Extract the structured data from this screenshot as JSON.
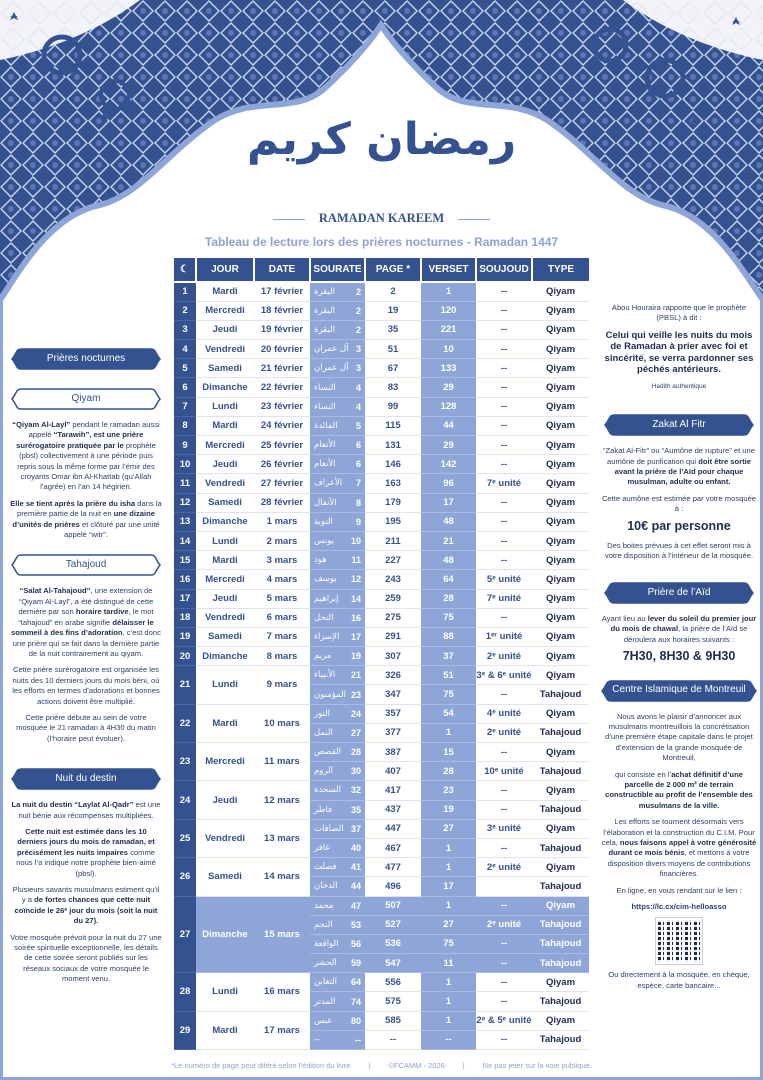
{
  "header": {
    "logo_text": "رمضان كريم",
    "title": "RAMADAN KAREEM",
    "subtitle": "Tableau de lecture lors des prières nocturnes - Ramadan 1447"
  },
  "colors": {
    "primary": "#34528f",
    "accent": "#8ea5d8",
    "light": "#8aa3d8"
  },
  "table": {
    "icon": "crescent-moon-icon",
    "columns": [
      "JOUR",
      "DATE",
      "SOURATE",
      "PAGE *",
      "VERSET",
      "SOUJOUD",
      "TYPE"
    ],
    "days": [
      {
        "n": "1",
        "jour": "Mardi",
        "date": "17 février",
        "r": [
          [
            "2",
            "البقرة",
            "2",
            "1",
            "--",
            "Qiyam"
          ]
        ]
      },
      {
        "n": "2",
        "jour": "Mercredi",
        "date": "18 février",
        "r": [
          [
            "2",
            "البقرة",
            "19",
            "120",
            "--",
            "Qiyam"
          ]
        ]
      },
      {
        "n": "3",
        "jour": "Jeudi",
        "date": "19 février",
        "r": [
          [
            "2",
            "البقرة",
            "35",
            "221",
            "--",
            "Qiyam"
          ]
        ]
      },
      {
        "n": "4",
        "jour": "Vendredi",
        "date": "20 février",
        "r": [
          [
            "3",
            "آل عمران",
            "51",
            "10",
            "--",
            "Qiyam"
          ]
        ]
      },
      {
        "n": "5",
        "jour": "Samedi",
        "date": "21 février",
        "r": [
          [
            "3",
            "آل عمران",
            "67",
            "133",
            "--",
            "Qiyam"
          ]
        ]
      },
      {
        "n": "6",
        "jour": "Dimanche",
        "date": "22 février",
        "r": [
          [
            "4",
            "النساء",
            "83",
            "29",
            "--",
            "Qiyam"
          ]
        ]
      },
      {
        "n": "7",
        "jour": "Lundi",
        "date": "23 février",
        "r": [
          [
            "4",
            "النساء",
            "99",
            "128",
            "--",
            "Qiyam"
          ]
        ]
      },
      {
        "n": "8",
        "jour": "Mardi",
        "date": "24 février",
        "r": [
          [
            "5",
            "المائدة",
            "115",
            "44",
            "--",
            "Qiyam"
          ]
        ]
      },
      {
        "n": "9",
        "jour": "Mercredi",
        "date": "25 février",
        "r": [
          [
            "6",
            "الأنعام",
            "131",
            "29",
            "--",
            "Qiyam"
          ]
        ]
      },
      {
        "n": "10",
        "jour": "Jeudi",
        "date": "26 février",
        "r": [
          [
            "6",
            "الأنعام",
            "146",
            "142",
            "--",
            "Qiyam"
          ]
        ]
      },
      {
        "n": "11",
        "jour": "Vendredi",
        "date": "27 février",
        "r": [
          [
            "7",
            "الأعراف",
            "163",
            "96",
            "7ᵉ unité",
            "Qiyam"
          ]
        ]
      },
      {
        "n": "12",
        "jour": "Samedi",
        "date": "28 février",
        "r": [
          [
            "8",
            "الأنفال",
            "179",
            "17",
            "--",
            "Qiyam"
          ]
        ]
      },
      {
        "n": "13",
        "jour": "Dimanche",
        "date": "1 mars",
        "r": [
          [
            "9",
            "التوبة",
            "195",
            "48",
            "--",
            "Qiyam"
          ]
        ]
      },
      {
        "n": "14",
        "jour": "Lundi",
        "date": "2 mars",
        "r": [
          [
            "10",
            "يونس",
            "211",
            "21",
            "--",
            "Qiyam"
          ]
        ]
      },
      {
        "n": "15",
        "jour": "Mardi",
        "date": "3 mars",
        "r": [
          [
            "11",
            "هود",
            "227",
            "48",
            "--",
            "Qiyam"
          ]
        ]
      },
      {
        "n": "16",
        "jour": "Mercredi",
        "date": "4 mars",
        "r": [
          [
            "12",
            "يوسف",
            "243",
            "64",
            "5ᵉ unité",
            "Qiyam"
          ]
        ]
      },
      {
        "n": "17",
        "jour": "Jeudi",
        "date": "5 mars",
        "r": [
          [
            "14",
            "إبراهيم",
            "259",
            "28",
            "7ᵉ unité",
            "Qiyam"
          ]
        ]
      },
      {
        "n": "18",
        "jour": "Vendredi",
        "date": "6 mars",
        "r": [
          [
            "16",
            "النحل",
            "275",
            "75",
            "--",
            "Qiyam"
          ]
        ]
      },
      {
        "n": "19",
        "jour": "Samedi",
        "date": "7 mars",
        "r": [
          [
            "17",
            "الإسراء",
            "291",
            "88",
            "1ᵉʳ unité",
            "Qiyam"
          ]
        ]
      },
      {
        "n": "20",
        "jour": "Dimanche",
        "date": "8 mars",
        "r": [
          [
            "19",
            "مريم",
            "307",
            "37",
            "2ᵉ unité",
            "Qiyam"
          ]
        ]
      },
      {
        "n": "21",
        "jour": "Lundi",
        "date": "9 mars",
        "r": [
          [
            "21",
            "الأنبياء",
            "326",
            "51",
            "3ᵉ & 6ᵉ unité",
            "Qiyam"
          ],
          [
            "23",
            "المؤمنون",
            "347",
            "75",
            "--",
            "Tahajoud"
          ]
        ]
      },
      {
        "n": "22",
        "jour": "Mardi",
        "date": "10 mars",
        "r": [
          [
            "24",
            "النور",
            "357",
            "54",
            "4ᵉ unité",
            "Qiyam"
          ],
          [
            "27",
            "النمل",
            "377",
            "1",
            "2ᵉ unité",
            "Tahajoud"
          ]
        ]
      },
      {
        "n": "23",
        "jour": "Mercredi",
        "date": "11 mars",
        "r": [
          [
            "28",
            "القصص",
            "387",
            "15",
            "--",
            "Qiyam"
          ],
          [
            "30",
            "الروم",
            "407",
            "28",
            "10ᵉ unité",
            "Tahajoud"
          ]
        ]
      },
      {
        "n": "24",
        "jour": "Jeudi",
        "date": "12 mars",
        "r": [
          [
            "32",
            "السجدة",
            "417",
            "23",
            "--",
            "Qiyam"
          ],
          [
            "35",
            "فاطر",
            "437",
            "19",
            "--",
            "Tahajoud"
          ]
        ]
      },
      {
        "n": "25",
        "jour": "Vendredi",
        "date": "13 mars",
        "r": [
          [
            "37",
            "الصافات",
            "447",
            "27",
            "3ᵉ unité",
            "Qiyam"
          ],
          [
            "40",
            "غافر",
            "467",
            "1",
            "--",
            "Tahajoud"
          ]
        ]
      },
      {
        "n": "26",
        "jour": "Samedi",
        "date": "14 mars",
        "r": [
          [
            "41",
            "فصلت",
            "477",
            "1",
            "2ᵉ unité",
            "Qiyam"
          ],
          [
            "44",
            "الدخان",
            "496",
            "17",
            "",
            "Tahajoud"
          ]
        ]
      },
      {
        "n": "27",
        "jour": "Dimanche",
        "date": "15 mars",
        "highlight": true,
        "r": [
          [
            "47",
            "محمد",
            "507",
            "1",
            "--",
            "Qiyam"
          ],
          [
            "53",
            "النجم",
            "527",
            "27",
            "2ᵉ unité",
            "Tahajoud"
          ],
          [
            "56",
            "الواقعة",
            "536",
            "75",
            "--",
            "Tahajoud"
          ],
          [
            "59",
            "الحشر",
            "547",
            "11",
            "--",
            "Tahajoud"
          ]
        ]
      },
      {
        "n": "28",
        "jour": "Lundi",
        "date": "16 mars",
        "r": [
          [
            "64",
            "التغابن",
            "556",
            "1",
            "--",
            "Qiyam"
          ],
          [
            "74",
            "المدثر",
            "575",
            "1",
            "--",
            "Tahajoud"
          ]
        ]
      },
      {
        "n": "29",
        "jour": "Mardi",
        "date": "17 mars",
        "r": [
          [
            "80",
            "عبس",
            "585",
            "1",
            "2ᵉ & 5ᵉ unité",
            "Qiyam"
          ],
          [
            "--",
            "--",
            "--",
            "--",
            "--",
            "Tahajoud"
          ]
        ]
      }
    ]
  },
  "left": {
    "banner_main": "Prières nocturnes",
    "qiyam": {
      "title": "Qiyam",
      "paras": [
        [
          {
            "t": "“Qiyam Al-Layl”",
            "b": 1
          },
          {
            "t": " pendant le ramadan aussi appelé "
          },
          {
            "t": "“Tarawih”, est une prière surérogatoire pratiquée par le",
            "b": 1
          },
          {
            "t": " prophète (pbsl) collectivement à une période puis repris sous la même forme par l’émir des croyants Omar ibn Al-Khattab (qu’Allah l’agrée) en l’an 14 hégirien."
          }
        ],
        [
          {
            "t": "Elle se tient après la prière du isha",
            "b": 1
          },
          {
            "t": " dans la première partie de la nuit en "
          },
          {
            "t": "une dizaine d’unités de prières",
            "b": 1
          },
          {
            "t": " et clôturé par une unité appelé “witr”."
          }
        ]
      ]
    },
    "tahajoud": {
      "title": "Tahajoud",
      "paras": [
        [
          {
            "t": "“Salat Al-Tahajoud”",
            "b": 1
          },
          {
            "t": ", une extension de “Qiyam Al-Layl”, a été distingué de cette dernière par son "
          },
          {
            "t": "horaire tardive",
            "b": 1
          },
          {
            "t": ", le mot “tahajoud” en arabe signifie "
          },
          {
            "t": "délaisser le sommeil à des fins d’adoration",
            "b": 1
          },
          {
            "t": ", c’est donc une prière qui se fait dans la dernière partie de la nuit contrairement au qiyam."
          }
        ],
        [
          {
            "t": "Cette prière surérogatoire est organisée les nuits des 10 derniers jours du mois béni, où les efforts en termes d’adorations et bonnes actions doivent être multiplié."
          }
        ],
        [
          {
            "t": "Cette prière débute au sein de votre mosquée le 21 ramadan à 4H30 du matin (l’horaire peut évoluer)."
          }
        ]
      ]
    },
    "destin": {
      "title": "Nuit du destin",
      "paras": [
        [
          {
            "t": "La nuit du destin “Laylat Al-Qadr”",
            "b": 1
          },
          {
            "t": " est une nuit bénie aux récompenses multipliées."
          }
        ],
        [
          {
            "t": "Cette nuit est estimée dans les 10 derniers jours du mois de ramadan, et précisément les nuits impaires",
            "b": 1
          },
          {
            "t": " comme nous l’a indiqué notre prophète bien-aimé (pbsl)."
          }
        ],
        [
          {
            "t": "Plusieurs savants musulmans estiment qu’il y a "
          },
          {
            "t": "de fortes chances que cette nuit coïncide le 26ᵉ jour du mois (soit la nuit du 27).",
            "b": 1
          }
        ],
        [
          {
            "t": "Votre mosquée prévoit pour la nuit du 27 une soirée spirituelle exceptionnelle, les détails de cette soirée seront publiés sur les réseaux sociaux de votre mosquée le moment venu."
          }
        ]
      ]
    }
  },
  "right": {
    "hadith_intro": "Abou Houraira rapporte que le prophète (PBSL) à dit :",
    "hadith": "Celui qui veille les nuits du mois de Ramadan à prier avec foi et sincérité, se verra pardonner ses péchés antérieurs.",
    "hadith_source": "Hadith authentique",
    "zakat": {
      "title": "Zakat Al Fitr",
      "paras": [
        [
          {
            "t": "“Zakat Al-Fitr” ou “Aumône de rupture” et une aumône de purification qui "
          },
          {
            "t": "doit être sortie avant la prière de l’Aïd pour chaque musulman, adulte ou enfant.",
            "b": 1
          }
        ],
        [
          {
            "t": "Cette aumône est estimée par votre mosquée à :"
          }
        ]
      ],
      "amount": "10€ par personne",
      "note": "Des boites prévues à cet effet seront mis à votre disposition à l’intérieur de la mosquée."
    },
    "aid": {
      "title": "Prière de l’Aïd",
      "paras": [
        [
          {
            "t": "Ayant lieu au "
          },
          {
            "t": "lever du soleil du premier jour du mois de chawal",
            "b": 1
          },
          {
            "t": ", la prière de l’Aïd se déroulera aux horaires suivants :"
          }
        ]
      ],
      "times": "7H30, 8H30 & 9H30"
    },
    "cim": {
      "title": "Centre Islamique de Montreuil",
      "paras": [
        [
          {
            "t": "Nous avons le plaisir d’annoncer aux musulmans montreuillois la concrétisation d’une première étape capitale dans le projet d’extension de la grande mosquée de Montreuil,"
          }
        ],
        [
          {
            "t": "qui consiste en l’"
          },
          {
            "t": "achat définitif d’une parcelle de 2 000 m² de terrain constructible au profit de l’ensemble des musulmans de la ville.",
            "b": 1
          }
        ],
        [
          {
            "t": "Les efforts se tournent désormais vers l’élaboration et la construction du C.I.M. Pour cela, "
          },
          {
            "t": "nous faisons appel à votre générosité durant ce mois bénis",
            "b": 1
          },
          {
            "t": ", et mettons à votre disposition divers moyens de contributions financières."
          }
        ],
        [
          {
            "t": "En ligne, en vous rendant sur le lien :"
          }
        ]
      ],
      "link": "https://lc.cx/cim-helloasso",
      "outro": "Ou directement à la mosquée, en chèque, espèce, carte bancaire..."
    }
  },
  "footer": [
    "*Le numéro de page peut diféré selon l’édition du livre",
    "|",
    "©FCAMM - 2026",
    "|",
    "Ne pas jeter sur la voie publique."
  ]
}
